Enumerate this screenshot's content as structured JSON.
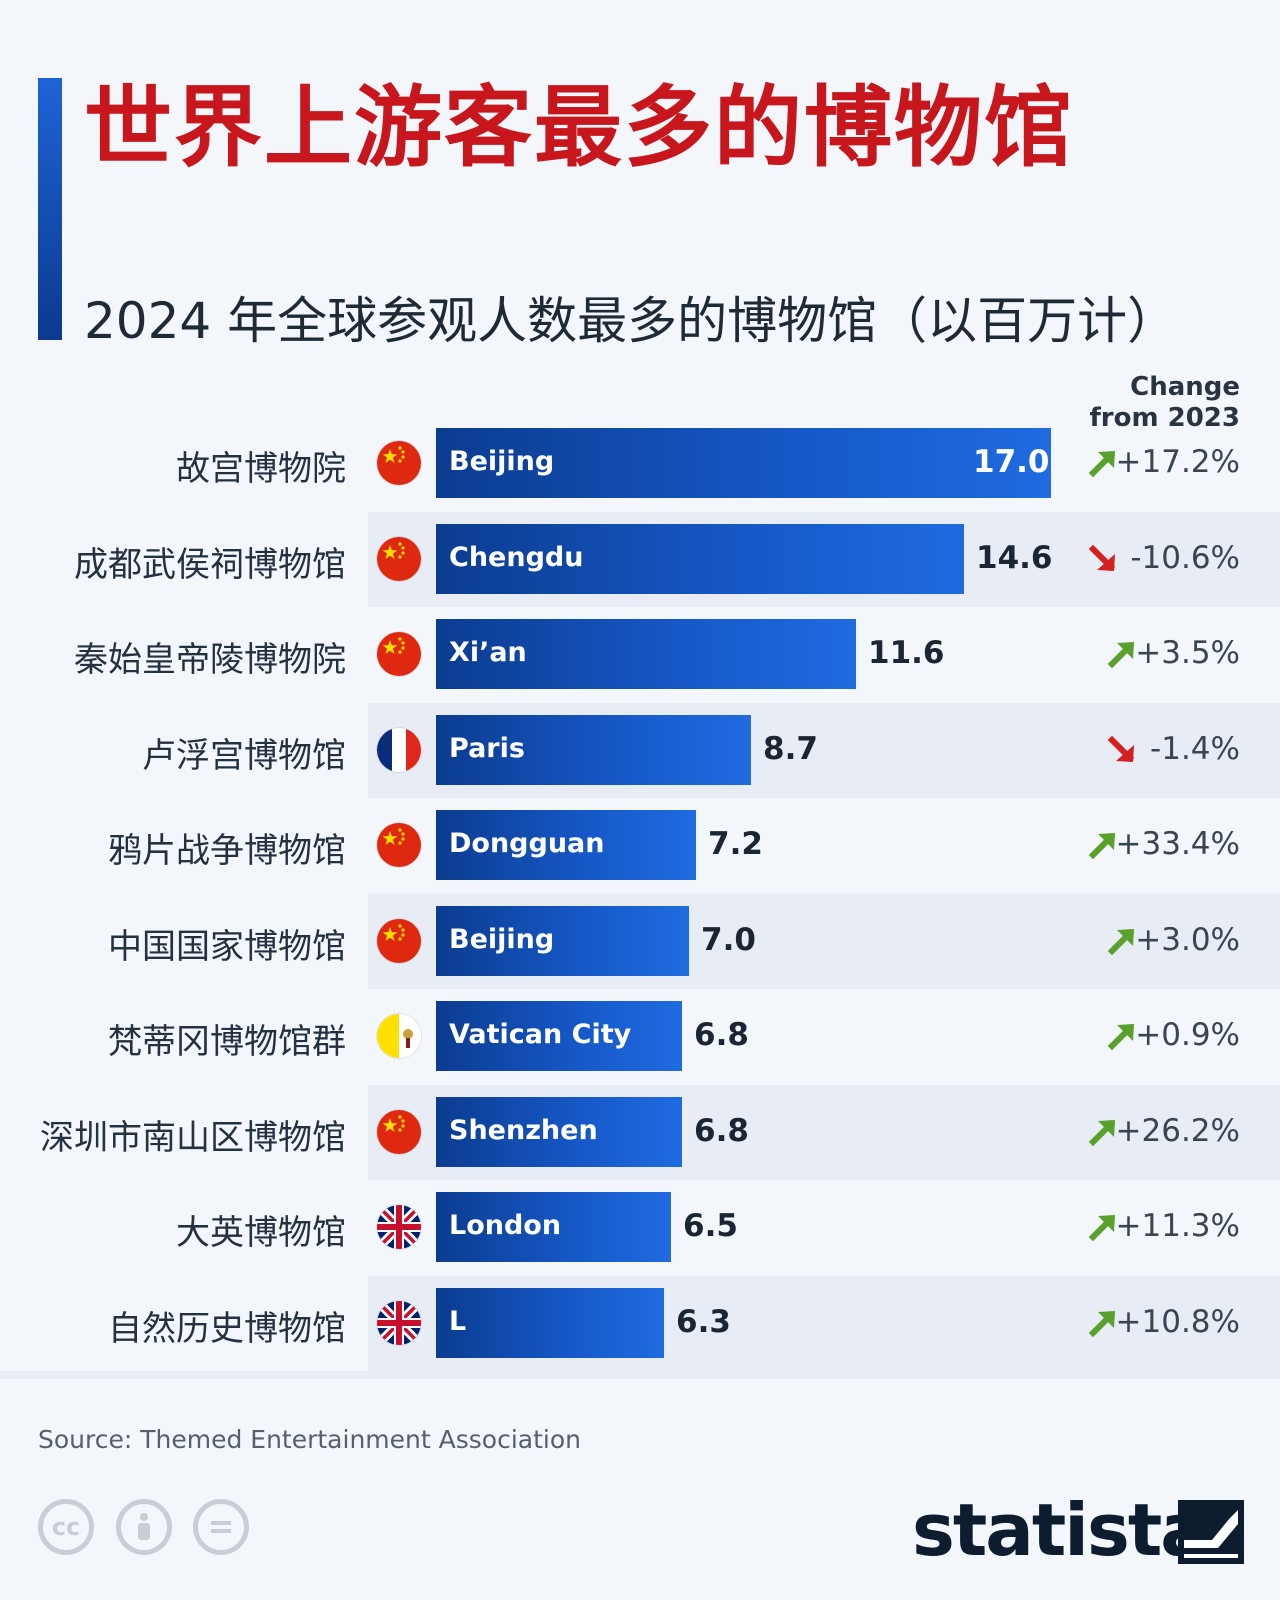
{
  "title": "世界上游客最多的博物馆",
  "subtitle": "2024 年全球参观人数最多的博物馆（以百万计）",
  "change_header": {
    "line1": "Change",
    "line2": "from 2023"
  },
  "source": "Source: Themed Entertainment Association",
  "brand": "statista",
  "colors": {
    "title": "#c8161d",
    "bar": "#1659c9",
    "up": "#5aa02c",
    "down": "#d42020"
  },
  "chart_data": {
    "type": "bar",
    "orientation": "horizontal",
    "title": "2024 年全球参观人数最多的博物馆（以百万计）",
    "unit": "millions of visitors",
    "xlim": [
      0,
      17.0
    ],
    "rows": [
      {
        "museum": "故宫博物院",
        "city": "Beijing",
        "flag": "china-flag-icon",
        "value": 17.0,
        "value_label": "17.0",
        "change": "+17.2%",
        "direction": "up"
      },
      {
        "museum": "成都武侯祠博物馆",
        "city": "Chengdu",
        "flag": "china-flag-icon",
        "value": 14.6,
        "value_label": "14.6",
        "change": "-10.6%",
        "direction": "down"
      },
      {
        "museum": "秦始皇帝陵博物院",
        "city": "Xi’an",
        "flag": "china-flag-icon",
        "value": 11.6,
        "value_label": "11.6",
        "change": "+3.5%",
        "direction": "up"
      },
      {
        "museum": "卢浮宫博物馆",
        "city": "Paris",
        "flag": "france-flag-icon",
        "value": 8.7,
        "value_label": "8.7",
        "change": "-1.4%",
        "direction": "down"
      },
      {
        "museum": "鸦片战争博物馆",
        "city": "Dongguan",
        "flag": "china-flag-icon",
        "value": 7.2,
        "value_label": "7.2",
        "change": "+33.4%",
        "direction": "up"
      },
      {
        "museum": "中国国家博物馆",
        "city": "Beijing",
        "flag": "china-flag-icon",
        "value": 7.0,
        "value_label": "7.0",
        "change": "+3.0%",
        "direction": "up"
      },
      {
        "museum": "梵蒂冈博物馆群",
        "city": "Vatican City",
        "flag": "vatican-flag-icon",
        "value": 6.8,
        "value_label": "6.8",
        "change": "+0.9%",
        "direction": "up"
      },
      {
        "museum": "深圳市南山区博物馆",
        "city": "Shenzhen",
        "flag": "china-flag-icon",
        "value": 6.8,
        "value_label": "6.8",
        "change": "+26.2%",
        "direction": "up"
      },
      {
        "museum": "大英博物馆",
        "city": "London",
        "flag": "uk-flag-icon",
        "value": 6.5,
        "value_label": "6.5",
        "change": "+11.3%",
        "direction": "up"
      },
      {
        "museum": "自然历史博物馆",
        "city": "L",
        "flag": "uk-flag-icon",
        "value": 6.3,
        "value_label": "6.3",
        "change": "+10.8%",
        "direction": "up"
      }
    ]
  }
}
